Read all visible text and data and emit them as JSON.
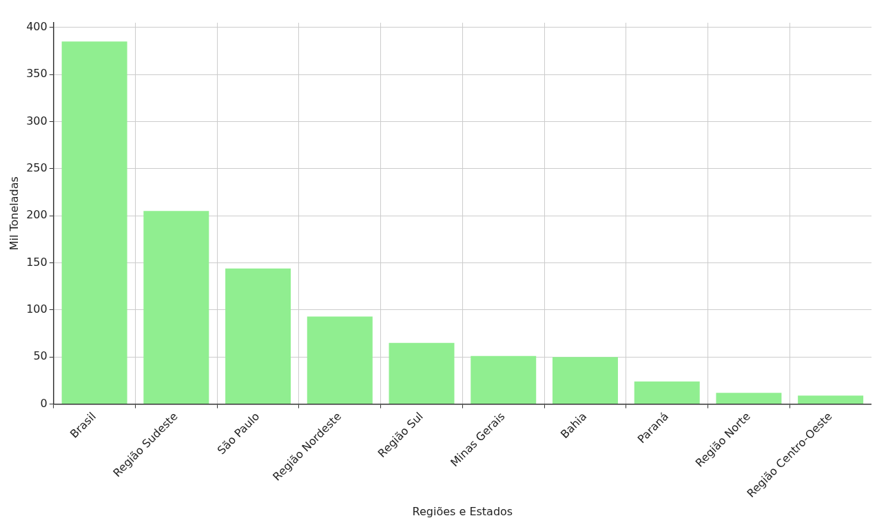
{
  "chart_data": {
    "type": "bar",
    "xlabel": "Regiões e Estados",
    "ylabel": "Mil Toneladas",
    "categories": [
      "Brasil",
      "Região Sudeste",
      "São Paulo",
      "Região Nordeste",
      "Região Sul",
      "Minas Gerais",
      "Bahia",
      "Paraná",
      "Região Norte",
      "Região Centro-Oeste"
    ],
    "values": [
      385,
      205,
      144,
      93,
      65,
      51,
      50,
      24,
      12,
      9
    ],
    "color": "#90ee90",
    "ylim": [
      0,
      405
    ],
    "yticks": [
      0,
      50,
      100,
      150,
      200,
      250,
      300,
      350,
      400
    ],
    "grid": true
  }
}
